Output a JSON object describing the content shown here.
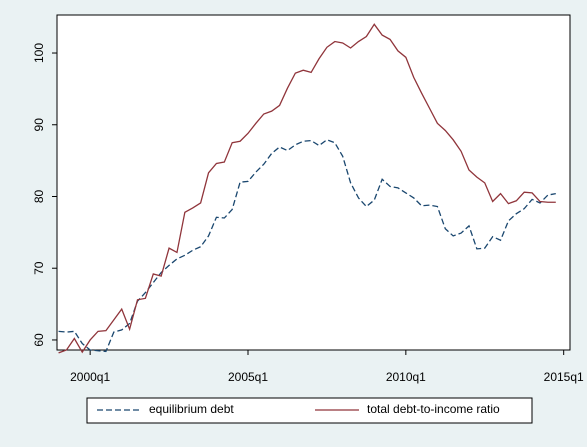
{
  "chart_data": {
    "type": "line",
    "x": [
      1999,
      1999.25,
      1999.5,
      1999.75,
      2000,
      2000.25,
      2000.5,
      2000.75,
      2001,
      2001.25,
      2001.5,
      2001.75,
      2002,
      2002.25,
      2002.5,
      2002.75,
      2003,
      2003.25,
      2003.5,
      2003.75,
      2004,
      2004.25,
      2004.5,
      2004.75,
      2005,
      2005.25,
      2005.5,
      2005.75,
      2006,
      2006.25,
      2006.5,
      2006.75,
      2007,
      2007.25,
      2007.5,
      2007.75,
      2008,
      2008.25,
      2008.5,
      2008.75,
      2009,
      2009.25,
      2009.5,
      2009.75,
      2010,
      2010.25,
      2010.5,
      2010.75,
      2011,
      2011.25,
      2011.5,
      2011.75,
      2012,
      2012.25,
      2012.5,
      2012.75,
      2013,
      2013.25,
      2013.5,
      2013.75,
      2014,
      2014.25,
      2014.5,
      2014.75
    ],
    "series": [
      {
        "name": "equilibrium debt",
        "color": "#1a476f",
        "dashed": true,
        "values": [
          61.2,
          61.1,
          61.2,
          59.5,
          58.6,
          58.5,
          58.4,
          61.1,
          61.4,
          62.3,
          65.4,
          66.6,
          68.0,
          69.4,
          70.4,
          71.3,
          71.8,
          72.5,
          73.0,
          74.5,
          77.1,
          77.0,
          78.2,
          82.0,
          82.1,
          83.4,
          84.5,
          86.0,
          86.9,
          86.4,
          87.2,
          87.7,
          87.8,
          87.1,
          87.9,
          87.5,
          85.6,
          81.9,
          79.8,
          78.6,
          79.5,
          82.4,
          81.4,
          81.2,
          80.5,
          79.8,
          78.7,
          78.8,
          78.6,
          75.5,
          74.5,
          74.9,
          75.9,
          72.7,
          72.8,
          74.4,
          73.9,
          76.6,
          77.6,
          78.3,
          79.6,
          79.1,
          80.2,
          80.4
        ]
      },
      {
        "name": "total debt-to-income ratio",
        "color": "#90353b",
        "dashed": false,
        "values": [
          58.2,
          58.6,
          60.2,
          58.3,
          60.0,
          61.2,
          61.3,
          62.8,
          64.3,
          61.5,
          65.6,
          65.8,
          69.2,
          68.9,
          72.8,
          72.2,
          77.8,
          78.4,
          79.1,
          83.3,
          84.6,
          84.8,
          87.5,
          87.7,
          88.8,
          90.2,
          91.5,
          91.9,
          92.7,
          95.1,
          97.2,
          97.6,
          97.3,
          99.2,
          100.8,
          101.6,
          101.4,
          100.7,
          101.6,
          102.3,
          104.0,
          102.5,
          101.9,
          100.3,
          99.4,
          96.6,
          94.4,
          92.3,
          90.2,
          89.2,
          87.9,
          86.3,
          83.7,
          82.7,
          81.9,
          79.3,
          80.4,
          79.0,
          79.4,
          80.6,
          80.5,
          79.3,
          79.2,
          79.2
        ]
      }
    ],
    "xlim": [
      1998.95,
      2015.2
    ],
    "xticks": [
      {
        "value": 2000,
        "label": "2000q1"
      },
      {
        "value": 2005,
        "label": "2005q1"
      },
      {
        "value": 2010,
        "label": "2010q1"
      },
      {
        "value": 2015,
        "label": "2015q1"
      }
    ],
    "ylim": [
      58.6,
      105.3
    ],
    "yticks": [
      60,
      70,
      80,
      90,
      100
    ],
    "grid": false,
    "legend": "bottom"
  }
}
